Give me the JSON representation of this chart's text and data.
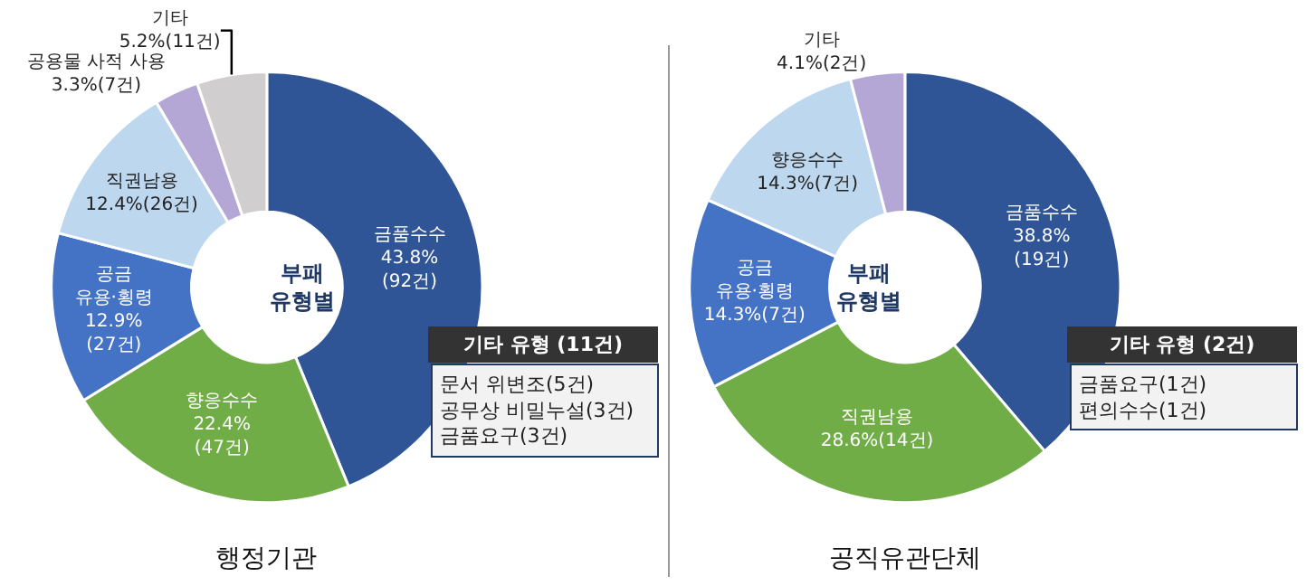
{
  "chart_data": [
    {
      "type": "donut",
      "title": "행정기관",
      "categories": [
        "금품수수",
        "향응수수",
        "공금\n유용·횡령",
        "직권남용",
        "공용물 사적 사용",
        "기타"
      ],
      "values": [
        92,
        47,
        27,
        26,
        7,
        11
      ],
      "value_labels": [
        "43.8%\n(92건)",
        "22.4%\n(47건)",
        "12.9%\n(27건)",
        "12.4%(26건)",
        "3.3%(7건)",
        "5.2%(11건)"
      ],
      "colors": [
        "#2f5597",
        "#70ad47",
        "#4472c4",
        "#bdd7ee",
        "#b4a7d6",
        "#d0cece"
      ],
      "annotations": [
        "부패\n유형별",
        "기타 유형 (11건)",
        "문서 위변조(5건)\n공무상 비밀누설(3건)\n금품요구(3건)"
      ]
    },
    {
      "type": "donut",
      "title": "공직유관단체",
      "categories": [
        "금품수수",
        "직권남용",
        "공금\n유용·횡령",
        "향응수수",
        "기타"
      ],
      "values": [
        19,
        14,
        7,
        7,
        2
      ],
      "value_labels": [
        "38.8%\n(19건)",
        "28.6%(14건)",
        "14.3%(7건)",
        "14.3%(7건)",
        "4.1%(2건)"
      ],
      "colors": [
        "#2f5597",
        "#70ad47",
        "#4472c4",
        "#bdd7ee",
        "#b4a7d6"
      ],
      "annotations": [
        "부패\n유형별",
        "기타 유형 (2건)",
        "금품요구(1건)\n편의수수(1건)"
      ]
    }
  ]
}
